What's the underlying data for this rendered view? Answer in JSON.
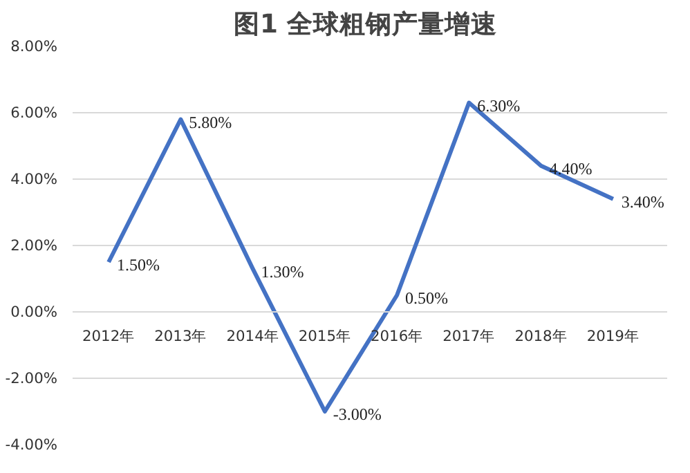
{
  "chart_data": {
    "type": "line",
    "title": "图1  全球粗钢产量增速",
    "categories": [
      "2012年",
      "2013年",
      "2014年",
      "2015年",
      "2016年",
      "2017年",
      "2018年",
      "2019年"
    ],
    "series": [
      {
        "color": "#4472c4",
        "values": [
          1.5,
          5.8,
          1.3,
          -3.0,
          0.5,
          6.3,
          4.4,
          3.4
        ],
        "value_labels": [
          "1.50%",
          "5.80%",
          "1.30%",
          "-3.00%",
          "0.50%",
          "6.30%",
          "4.40%",
          "3.40%"
        ]
      }
    ],
    "ylim": [
      -4,
      8
    ],
    "yticks": [
      {
        "value": -4,
        "label": "-4.00%"
      },
      {
        "value": -2,
        "label": "-2.00%"
      },
      {
        "value": 0,
        "label": "0.00%"
      },
      {
        "value": 2,
        "label": "2.00%"
      },
      {
        "value": 4,
        "label": "4.00%"
      },
      {
        "value": 6,
        "label": "6.00%"
      },
      {
        "value": 8,
        "label": "8.00%"
      }
    ],
    "grid": "y",
    "marker": "none",
    "line_style": "solid"
  }
}
